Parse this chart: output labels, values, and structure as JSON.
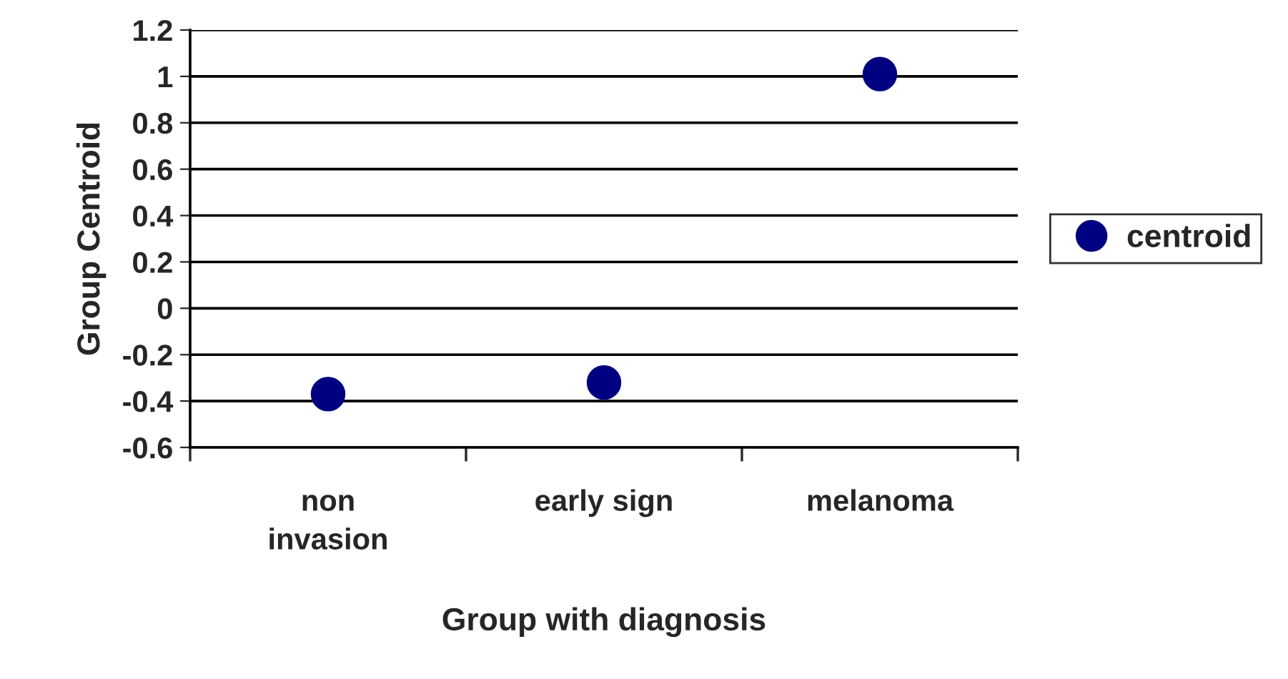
{
  "chart_data": {
    "type": "scatter",
    "xlabel": "Group with diagnosis",
    "ylabel": "Group Centroid",
    "categories": [
      "non\ninvasion",
      "early sign",
      "melanoma"
    ],
    "series": [
      {
        "name": "centroid",
        "color": "#000080",
        "values": [
          -0.37,
          -0.32,
          1.01
        ]
      }
    ],
    "ylim": [
      -0.6,
      1.2
    ],
    "yticks": [
      -0.6,
      -0.4,
      -0.2,
      0,
      0.2,
      0.4,
      0.6,
      0.8,
      1,
      1.2
    ],
    "grid": "y",
    "legend": "right",
    "marker": "circle"
  }
}
